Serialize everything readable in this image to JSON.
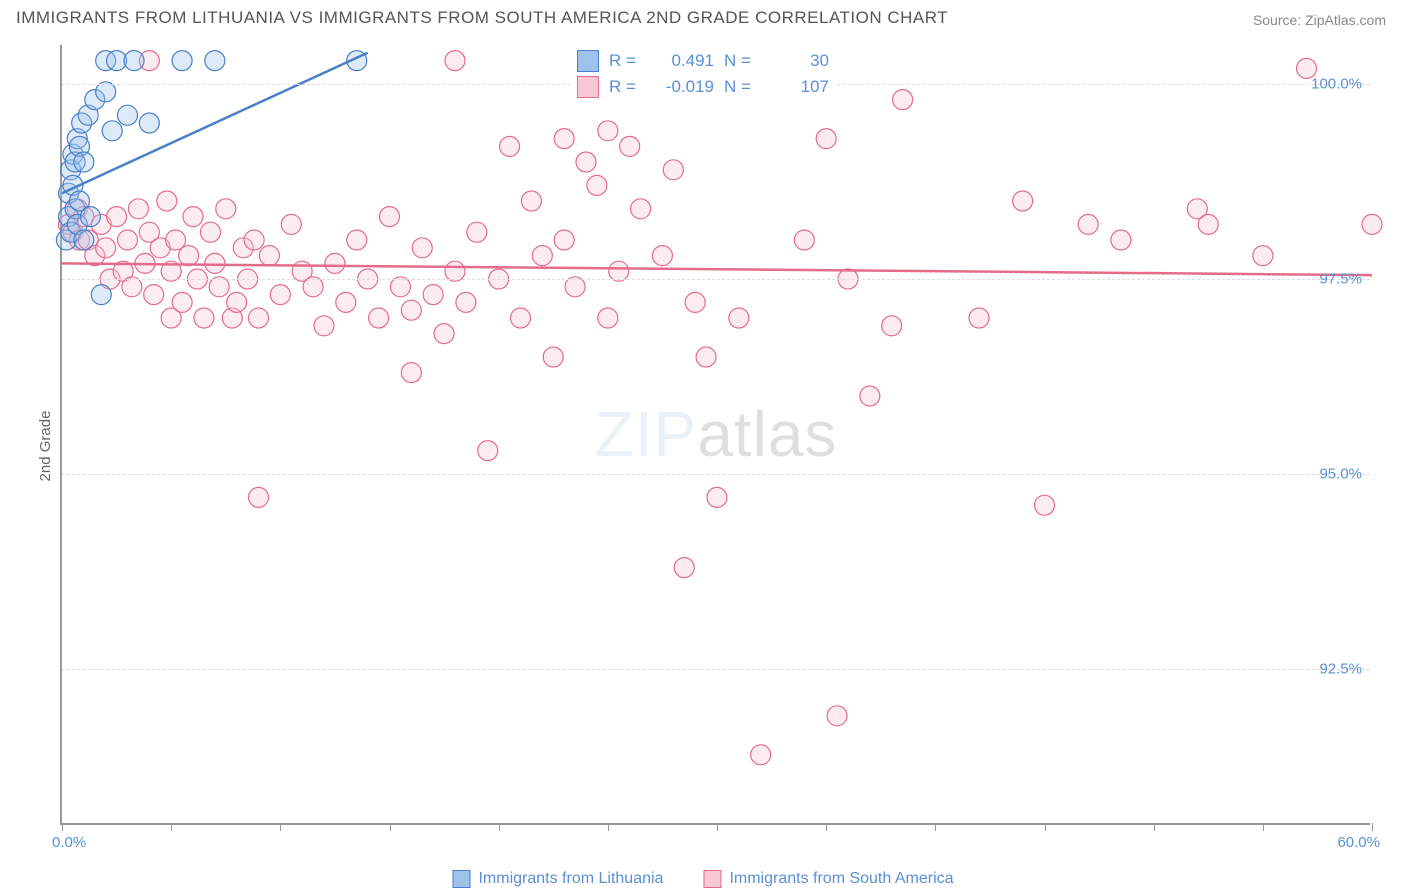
{
  "title": "IMMIGRANTS FROM LITHUANIA VS IMMIGRANTS FROM SOUTH AMERICA 2ND GRADE CORRELATION CHART",
  "source": "Source: ZipAtlas.com",
  "ylabel": "2nd Grade",
  "watermark_prefix": "ZIP",
  "watermark_suffix": "atlas",
  "chart": {
    "type": "scatter",
    "background_color": "#ffffff",
    "grid_color": "#dddddd",
    "axis_color": "#999999",
    "tick_label_color": "#5b8fd6",
    "xlim": [
      0.0,
      60.0
    ],
    "ylim": [
      90.5,
      100.5
    ],
    "xticks_minor": [
      0,
      5,
      10,
      15,
      20,
      25,
      30,
      35,
      40,
      45,
      50,
      55,
      60
    ],
    "xlim_labels": {
      "left": "0.0%",
      "right": "60.0%"
    },
    "yticks": [
      {
        "v": 92.5,
        "label": "92.5%"
      },
      {
        "v": 95.0,
        "label": "95.0%"
      },
      {
        "v": 97.5,
        "label": "97.5%"
      },
      {
        "v": 100.0,
        "label": "100.0%"
      }
    ],
    "marker_radius": 10,
    "marker_fill_opacity": 0.35,
    "marker_stroke_width": 1.2,
    "trend_line_width": 2.5,
    "series_a": {
      "name": "Immigrants from Lithuania",
      "color_fill": "#9dc3ec",
      "color_stroke": "#4a7fc9",
      "r_value": "0.491",
      "n_value": "30",
      "trend": {
        "x1": 0.0,
        "y1": 98.6,
        "x2": 14.0,
        "y2": 100.4
      },
      "points": [
        [
          0.2,
          98.0
        ],
        [
          0.3,
          98.3
        ],
        [
          0.3,
          98.6
        ],
        [
          0.4,
          98.1
        ],
        [
          0.4,
          98.9
        ],
        [
          0.5,
          98.7
        ],
        [
          0.5,
          99.1
        ],
        [
          0.6,
          98.4
        ],
        [
          0.6,
          99.0
        ],
        [
          0.7,
          98.2
        ],
        [
          0.7,
          99.3
        ],
        [
          0.8,
          98.5
        ],
        [
          0.8,
          99.2
        ],
        [
          0.9,
          99.5
        ],
        [
          1.0,
          98.0
        ],
        [
          1.0,
          99.0
        ],
        [
          1.2,
          99.6
        ],
        [
          1.3,
          98.3
        ],
        [
          1.5,
          99.8
        ],
        [
          1.8,
          97.3
        ],
        [
          2.0,
          99.9
        ],
        [
          2.0,
          100.3
        ],
        [
          2.3,
          99.4
        ],
        [
          2.5,
          100.3
        ],
        [
          3.0,
          99.6
        ],
        [
          3.3,
          100.3
        ],
        [
          4.0,
          99.5
        ],
        [
          5.5,
          100.3
        ],
        [
          7.0,
          100.3
        ],
        [
          13.5,
          100.3
        ]
      ]
    },
    "series_b": {
      "name": "Immigrants from South America",
      "color_fill": "#f7c8d3",
      "color_stroke": "#e56b8b",
      "r_value": "-0.019",
      "n_value": "107",
      "trend": {
        "x1": 0.0,
        "y1": 97.7,
        "x2": 60.0,
        "y2": 97.55
      },
      "points": [
        [
          0.3,
          98.2
        ],
        [
          0.5,
          98.1
        ],
        [
          0.7,
          98.4
        ],
        [
          0.8,
          98.0
        ],
        [
          1.0,
          98.3
        ],
        [
          1.2,
          98.0
        ],
        [
          1.5,
          97.8
        ],
        [
          1.8,
          98.2
        ],
        [
          2.0,
          97.9
        ],
        [
          2.2,
          97.5
        ],
        [
          2.5,
          98.3
        ],
        [
          2.8,
          97.6
        ],
        [
          3.0,
          98.0
        ],
        [
          3.2,
          97.4
        ],
        [
          3.5,
          98.4
        ],
        [
          3.8,
          97.7
        ],
        [
          4.0,
          98.1
        ],
        [
          4.0,
          100.3
        ],
        [
          4.2,
          97.3
        ],
        [
          4.5,
          97.9
        ],
        [
          4.8,
          98.5
        ],
        [
          5.0,
          97.6
        ],
        [
          5.0,
          97.0
        ],
        [
          5.2,
          98.0
        ],
        [
          5.5,
          97.2
        ],
        [
          5.8,
          97.8
        ],
        [
          6.0,
          98.3
        ],
        [
          6.2,
          97.5
        ],
        [
          6.5,
          97.0
        ],
        [
          6.8,
          98.1
        ],
        [
          7.0,
          97.7
        ],
        [
          7.2,
          97.4
        ],
        [
          7.5,
          98.4
        ],
        [
          7.8,
          97.0
        ],
        [
          8.0,
          97.2
        ],
        [
          8.3,
          97.9
        ],
        [
          8.5,
          97.5
        ],
        [
          8.8,
          98.0
        ],
        [
          9.0,
          97.0
        ],
        [
          9.0,
          94.7
        ],
        [
          9.5,
          97.8
        ],
        [
          10.0,
          97.3
        ],
        [
          10.5,
          98.2
        ],
        [
          11.0,
          97.6
        ],
        [
          11.5,
          97.4
        ],
        [
          12.0,
          96.9
        ],
        [
          12.5,
          97.7
        ],
        [
          13.0,
          97.2
        ],
        [
          13.5,
          98.0
        ],
        [
          14.0,
          97.5
        ],
        [
          14.5,
          97.0
        ],
        [
          15.0,
          98.3
        ],
        [
          15.5,
          97.4
        ],
        [
          16.0,
          97.1
        ],
        [
          16.0,
          96.3
        ],
        [
          16.5,
          97.9
        ],
        [
          17.0,
          97.3
        ],
        [
          17.5,
          96.8
        ],
        [
          18.0,
          97.6
        ],
        [
          18.0,
          100.3
        ],
        [
          18.5,
          97.2
        ],
        [
          19.0,
          98.1
        ],
        [
          19.5,
          95.3
        ],
        [
          20.0,
          97.5
        ],
        [
          20.5,
          99.2
        ],
        [
          21.0,
          97.0
        ],
        [
          21.5,
          98.5
        ],
        [
          22.0,
          97.8
        ],
        [
          22.5,
          96.5
        ],
        [
          23.0,
          98.0
        ],
        [
          23.0,
          99.3
        ],
        [
          23.5,
          97.4
        ],
        [
          24.0,
          99.0
        ],
        [
          24.5,
          98.7
        ],
        [
          25.0,
          97.0
        ],
        [
          25.0,
          99.4
        ],
        [
          25.5,
          97.6
        ],
        [
          26.0,
          99.2
        ],
        [
          26.5,
          98.4
        ],
        [
          27.0,
          100.3
        ],
        [
          27.5,
          97.8
        ],
        [
          28.0,
          98.9
        ],
        [
          28.5,
          93.8
        ],
        [
          29.0,
          97.2
        ],
        [
          29.5,
          96.5
        ],
        [
          30.0,
          94.7
        ],
        [
          31.0,
          97.0
        ],
        [
          32.0,
          91.4
        ],
        [
          33.0,
          100.2
        ],
        [
          34.0,
          98.0
        ],
        [
          34.5,
          100.3
        ],
        [
          35.0,
          99.3
        ],
        [
          35.5,
          91.9
        ],
        [
          36.0,
          97.5
        ],
        [
          37.0,
          96.0
        ],
        [
          38.0,
          96.9
        ],
        [
          38.5,
          99.8
        ],
        [
          42.0,
          97.0
        ],
        [
          44.0,
          98.5
        ],
        [
          45.0,
          94.6
        ],
        [
          47.0,
          98.2
        ],
        [
          48.5,
          98.0
        ],
        [
          52.0,
          98.4
        ],
        [
          52.5,
          98.2
        ],
        [
          55.0,
          97.8
        ],
        [
          57.0,
          100.2
        ],
        [
          60.0,
          98.2
        ]
      ]
    }
  },
  "legend_top": {
    "r_label": "R =",
    "n_label": "N ="
  }
}
